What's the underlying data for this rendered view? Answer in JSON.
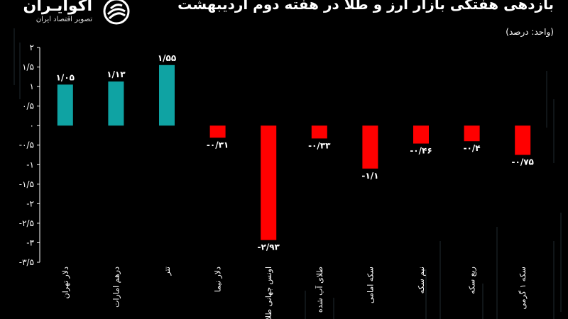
{
  "brand": {
    "name": "آکوایـران",
    "tagline": "تصویر اقتصاد ایران",
    "logo_icon": "aqua-swirl-icon"
  },
  "header": {
    "title": "بازدهی هفتگی بازار ارز و طلا در هفته دوم اردیبهشت",
    "unit": "(واحد: درصد)"
  },
  "colors": {
    "positive": "#0fa3a3",
    "negative": "#ff0000",
    "background": "#000000",
    "grid": "#2a2a2a"
  },
  "chart_data": {
    "type": "bar",
    "title": "بازدهی هفتگی بازار ارز و طلا در هفته دوم اردیبهشت",
    "unit": "(واحد: درصد)",
    "categories": [
      "دلار تهران",
      "درهم امارات",
      "تتر",
      "دلار نیما",
      "اونس جهانی طلا",
      "طلای آب شده",
      "سکه امامی",
      "نیم سکه",
      "ربع سکه",
      "سکه ۱ گرمی"
    ],
    "values": [
      1.05,
      1.13,
      1.55,
      -0.31,
      -2.93,
      -0.33,
      -1.1,
      -0.46,
      -0.4,
      -0.75
    ],
    "value_labels": [
      "۱/۰۵",
      "۱/۱۳",
      "۱/۵۵",
      "-۰/۳۱",
      "-۲/۹۳",
      "-۰/۳۳",
      "-۱/۱",
      "-۰/۴۶",
      "-۰/۴",
      "-۰/۷۵"
    ],
    "ylim": [
      -3.5,
      2
    ],
    "yticks": [
      2,
      1.5,
      1,
      0.5,
      0,
      -0.5,
      -1,
      -1.5,
      -2,
      -2.5,
      -3,
      -3.5
    ],
    "ytick_labels": [
      "۲",
      "۱/۵",
      "۱",
      "۰/۵",
      "۰",
      "-۰/۵",
      "-۱",
      "-۱/۵",
      "-۲",
      "-۲/۵",
      "-۳",
      "-۳/۵"
    ],
    "grid": false,
    "legend": "none"
  }
}
